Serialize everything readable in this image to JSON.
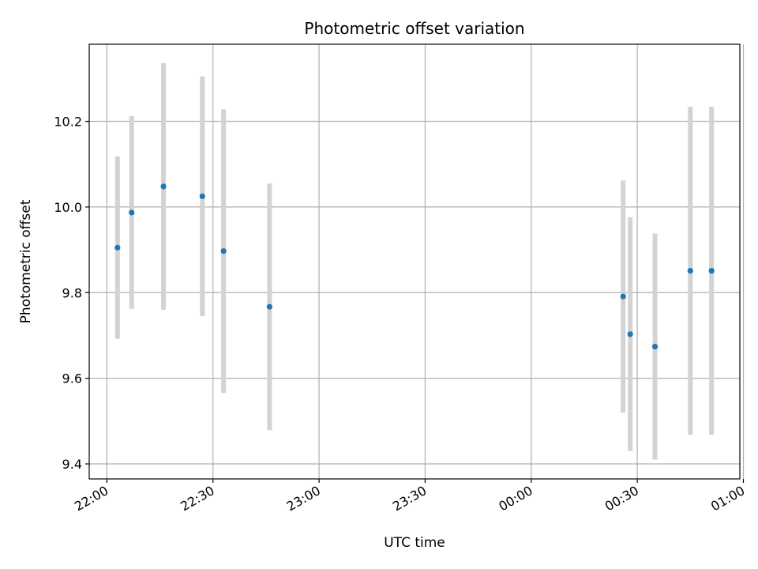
{
  "chart_data": {
    "type": "scatter",
    "title": "Photometric offset variation",
    "xlabel": "UTC time",
    "ylabel": "Photometric offset",
    "x_ticks": [
      "22:00",
      "22:30",
      "23:00",
      "23:30",
      "00:00",
      "00:30",
      "01:00"
    ],
    "y_ticks": [
      "9.4",
      "9.6",
      "9.8",
      "10.0",
      "10.2"
    ],
    "x_range": [
      "21:55",
      "00:59"
    ],
    "ylim": [
      9.365,
      10.38
    ],
    "grid": true,
    "colors": {
      "point": "#1f77b4",
      "errorbar": "#d3d3d3",
      "grid": "#b0b0b0"
    },
    "points": [
      {
        "x": "22:03",
        "y": 9.905,
        "yerr": 0.213
      },
      {
        "x": "22:07",
        "y": 9.987,
        "yerr": 0.225
      },
      {
        "x": "22:16",
        "y": 10.048,
        "yerr": 0.288
      },
      {
        "x": "22:27",
        "y": 10.025,
        "yerr": 0.28
      },
      {
        "x": "22:33",
        "y": 9.897,
        "yerr": 0.331
      },
      {
        "x": "22:46",
        "y": 9.767,
        "yerr": 0.288
      },
      {
        "x": "00:26",
        "y": 9.791,
        "yerr": 0.271
      },
      {
        "x": "00:28",
        "y": 9.703,
        "yerr": 0.273
      },
      {
        "x": "00:35",
        "y": 9.674,
        "yerr": 0.264
      },
      {
        "x": "00:45",
        "y": 9.851,
        "yerr": 0.383
      },
      {
        "x": "00:51",
        "y": 9.851,
        "yerr": 0.383
      }
    ]
  }
}
